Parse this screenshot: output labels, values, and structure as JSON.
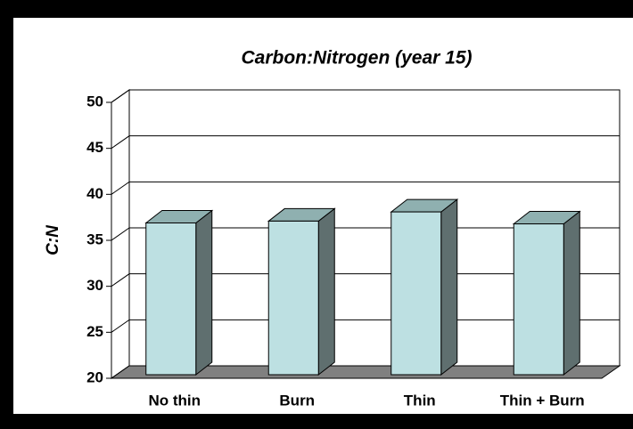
{
  "chart_data": {
    "type": "bar3d",
    "title": "Carbon:Nitrogen (year 15)",
    "y_label": "C:N",
    "categories": [
      "No thin",
      "Burn",
      "Thin",
      "Thin + Burn"
    ],
    "values": [
      36.5,
      36.7,
      37.7,
      36.4
    ],
    "color": "#bde0e2",
    "ylim": [
      20,
      50
    ],
    "yticks": [
      20,
      25,
      30,
      35,
      40,
      45,
      50
    ],
    "grid": true
  }
}
